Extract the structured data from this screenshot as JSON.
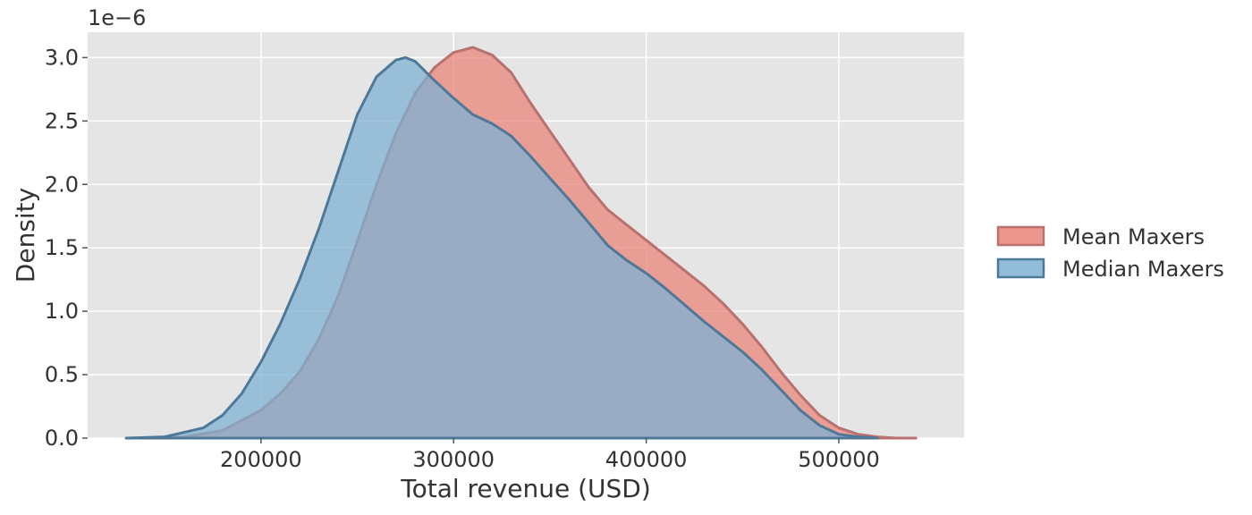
{
  "chart_data": {
    "type": "area",
    "title": "",
    "xlabel": "Total revenue (USD)",
    "ylabel": "Density",
    "y_scale_label": "1e−6",
    "xlim": [
      110000,
      565000
    ],
    "ylim": [
      0,
      3.2
    ],
    "x_ticks": [
      200000,
      300000,
      400000,
      500000
    ],
    "x_tick_labels": [
      "200000",
      "300000",
      "400000",
      "500000"
    ],
    "y_ticks": [
      0.0,
      0.5,
      1.0,
      1.5,
      2.0,
      2.5,
      3.0
    ],
    "y_tick_labels": [
      "0.0",
      "0.5",
      "1.0",
      "1.5",
      "2.0",
      "2.5",
      "3.0"
    ],
    "grid": true,
    "legend_position": "right",
    "series": [
      {
        "name": "Mean Maxers",
        "color": "#e8857a",
        "edge_color": "#b8716f",
        "x": [
          140000,
          160000,
          180000,
          200000,
          210000,
          220000,
          230000,
          240000,
          250000,
          260000,
          270000,
          280000,
          290000,
          300000,
          310000,
          320000,
          330000,
          340000,
          350000,
          360000,
          370000,
          380000,
          390000,
          400000,
          410000,
          420000,
          430000,
          440000,
          450000,
          460000,
          470000,
          480000,
          490000,
          500000,
          510000,
          520000,
          530000,
          540000
        ],
        "y": [
          0.0,
          0.01,
          0.06,
          0.22,
          0.35,
          0.52,
          0.78,
          1.12,
          1.55,
          2.0,
          2.4,
          2.72,
          2.92,
          3.04,
          3.08,
          3.02,
          2.88,
          2.64,
          2.42,
          2.2,
          1.98,
          1.8,
          1.68,
          1.56,
          1.44,
          1.32,
          1.2,
          1.06,
          0.9,
          0.72,
          0.52,
          0.34,
          0.18,
          0.08,
          0.03,
          0.01,
          0.0,
          0.0
        ]
      },
      {
        "name": "Median Maxers",
        "color": "#7fb0d3",
        "edge_color": "#4e7898",
        "x": [
          130000,
          150000,
          170000,
          180000,
          190000,
          200000,
          210000,
          220000,
          230000,
          240000,
          250000,
          260000,
          270000,
          275000,
          280000,
          290000,
          300000,
          310000,
          320000,
          330000,
          340000,
          350000,
          360000,
          370000,
          380000,
          390000,
          400000,
          410000,
          420000,
          430000,
          440000,
          450000,
          460000,
          470000,
          480000,
          490000,
          500000,
          510000,
          520000
        ],
        "y": [
          0.0,
          0.01,
          0.08,
          0.18,
          0.35,
          0.6,
          0.9,
          1.25,
          1.65,
          2.1,
          2.55,
          2.85,
          2.98,
          3.0,
          2.97,
          2.82,
          2.68,
          2.55,
          2.48,
          2.38,
          2.22,
          2.05,
          1.88,
          1.7,
          1.52,
          1.4,
          1.3,
          1.18,
          1.05,
          0.92,
          0.8,
          0.68,
          0.54,
          0.38,
          0.22,
          0.1,
          0.03,
          0.01,
          0.0
        ]
      }
    ]
  }
}
